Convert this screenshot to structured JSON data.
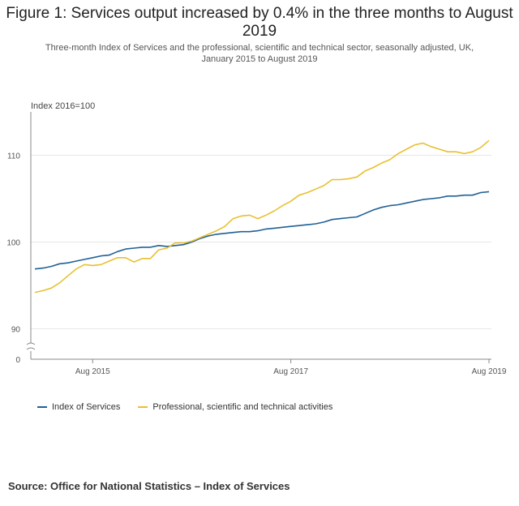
{
  "title": "Figure 1: Services output increased by 0.4% in the three months to August 2019",
  "subtitle": "Three-month Index of Services and the professional, scientific and technical sector, seasonally adjusted, UK, January 2015 to August 2019",
  "source": "Source: Office for National Statistics – Index of Services",
  "colors": {
    "services": "#206095",
    "professional": "#e8c031",
    "axis": "#888888",
    "grid": "#e6e6e6"
  },
  "chart_data": {
    "type": "line",
    "ylabel": "Index 2016=100",
    "yticks": [
      0,
      90,
      100,
      110
    ],
    "y_axis_break": true,
    "x_range": [
      "2015-01",
      "2019-08"
    ],
    "xticks": [
      "Aug 2015",
      "Aug 2017",
      "Aug 2019"
    ],
    "grid": true,
    "legend_position": "bottom",
    "x": [
      "2015-01",
      "2015-02",
      "2015-03",
      "2015-04",
      "2015-05",
      "2015-06",
      "2015-07",
      "2015-08",
      "2015-09",
      "2015-10",
      "2015-11",
      "2015-12",
      "2016-01",
      "2016-02",
      "2016-03",
      "2016-04",
      "2016-05",
      "2016-06",
      "2016-07",
      "2016-08",
      "2016-09",
      "2016-10",
      "2016-11",
      "2016-12",
      "2017-01",
      "2017-02",
      "2017-03",
      "2017-04",
      "2017-05",
      "2017-06",
      "2017-07",
      "2017-08",
      "2017-09",
      "2017-10",
      "2017-11",
      "2017-12",
      "2018-01",
      "2018-02",
      "2018-03",
      "2018-04",
      "2018-05",
      "2018-06",
      "2018-07",
      "2018-08",
      "2018-09",
      "2018-10",
      "2018-11",
      "2018-12",
      "2019-01",
      "2019-02",
      "2019-03",
      "2019-04",
      "2019-05",
      "2019-06",
      "2019-07",
      "2019-08"
    ],
    "series": [
      {
        "name": "Index of Services",
        "color": "#206095",
        "values": [
          96.9,
          97.0,
          97.2,
          97.5,
          97.6,
          97.8,
          98.0,
          98.2,
          98.4,
          98.5,
          98.9,
          99.2,
          99.3,
          99.4,
          99.4,
          99.6,
          99.5,
          99.6,
          99.7,
          100.0,
          100.4,
          100.7,
          100.9,
          101.0,
          101.1,
          101.2,
          101.2,
          101.3,
          101.5,
          101.6,
          101.7,
          101.8,
          101.9,
          102.0,
          102.1,
          102.3,
          102.6,
          102.7,
          102.8,
          102.9,
          103.3,
          103.7,
          104.0,
          104.2,
          104.3,
          104.5,
          104.7,
          104.9,
          105.0,
          105.1,
          105.3,
          105.3,
          105.4,
          105.4,
          105.7,
          105.8
        ]
      },
      {
        "name": "Professional, scientific and technical activities",
        "color": "#e8c031",
        "values": [
          94.2,
          94.4,
          94.7,
          95.3,
          96.1,
          96.9,
          97.4,
          97.3,
          97.4,
          97.8,
          98.2,
          98.2,
          97.7,
          98.1,
          98.1,
          99.1,
          99.3,
          99.9,
          99.9,
          100.1,
          100.5,
          100.9,
          101.3,
          101.8,
          102.7,
          103.0,
          103.1,
          102.7,
          103.1,
          103.6,
          104.2,
          104.7,
          105.4,
          105.7,
          106.1,
          106.5,
          107.2,
          107.2,
          107.3,
          107.5,
          108.2,
          108.6,
          109.1,
          109.5,
          110.2,
          110.7,
          111.2,
          111.4,
          111.0,
          110.7,
          110.4,
          110.4,
          110.2,
          110.4,
          110.9,
          111.7
        ]
      }
    ]
  }
}
